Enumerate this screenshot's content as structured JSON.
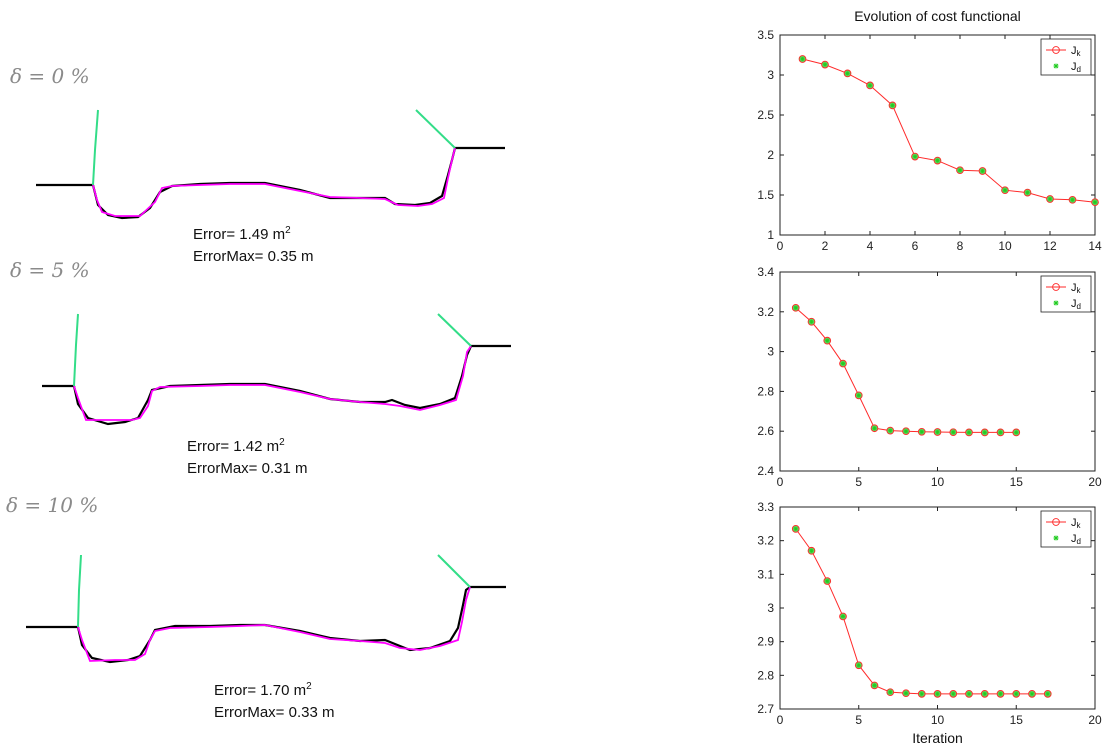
{
  "profiles": [
    {
      "delta_label": "δ = 0 %",
      "error_label": "Error=",
      "error_value": "1.49 m",
      "error_exp": "2",
      "errormax_label": "ErrorMax=",
      "errormax_value": "0.35 m"
    },
    {
      "delta_label": "δ = 5 %",
      "error_label": "Error=",
      "error_value": "1.42 m",
      "error_exp": "2",
      "errormax_label": "ErrorMax=",
      "errormax_value": "0.31 m"
    },
    {
      "delta_label": "δ = 10 %",
      "error_label": "Error=",
      "error_value": "1.70 m",
      "error_exp": "2",
      "errormax_label": "ErrorMax=",
      "errormax_value": "0.33 m"
    }
  ],
  "colors": {
    "true_profile": "#000000",
    "reconstructed_profile": "#ff00ff",
    "bank_lines": "#33dd88",
    "Jk": "#ff2a2a",
    "Jd_fill": "#5cd65c",
    "Jd_star": "#22cc22"
  },
  "chart_data": [
    {
      "type": "line",
      "title": "Evolution of cost functional",
      "xlabel": "",
      "ylabel": "",
      "xlim": [
        0,
        14
      ],
      "ylim": [
        1,
        3.5
      ],
      "xticks": [
        0,
        2,
        4,
        6,
        8,
        10,
        12,
        14
      ],
      "yticks": [
        1,
        1.5,
        2,
        2.5,
        3,
        3.5
      ],
      "legend_position": "top-right",
      "x": [
        1,
        2,
        3,
        4,
        5,
        6,
        7,
        8,
        9,
        10,
        11,
        12,
        13,
        14
      ],
      "series": [
        {
          "name": "J",
          "subscript": "k",
          "values": [
            3.2,
            3.13,
            3.02,
            2.87,
            2.62,
            1.98,
            1.93,
            1.81,
            1.8,
            1.56,
            1.53,
            1.45,
            1.44,
            1.41
          ]
        },
        {
          "name": "J",
          "subscript": "d",
          "values": [
            3.2,
            3.13,
            3.02,
            2.87,
            2.62,
            1.98,
            1.93,
            1.81,
            1.8,
            1.56,
            1.53,
            1.45,
            1.44,
            1.41
          ]
        }
      ]
    },
    {
      "type": "line",
      "title": "",
      "xlabel": "",
      "ylabel": "",
      "xlim": [
        0,
        20
      ],
      "ylim": [
        2.4,
        3.4
      ],
      "xticks": [
        0,
        5,
        10,
        15,
        20
      ],
      "yticks": [
        2.4,
        2.6,
        2.8,
        3,
        3.2,
        3.4
      ],
      "legend_position": "top-right",
      "x": [
        1,
        2,
        3,
        4,
        5,
        6,
        7,
        8,
        9,
        10,
        11,
        12,
        13,
        14,
        15
      ],
      "series": [
        {
          "name": "J",
          "subscript": "k",
          "values": [
            3.22,
            3.15,
            3.055,
            2.94,
            2.78,
            2.615,
            2.603,
            2.6,
            2.597,
            2.596,
            2.595,
            2.594,
            2.594,
            2.594,
            2.594
          ]
        },
        {
          "name": "J",
          "subscript": "d",
          "values": [
            3.22,
            3.15,
            3.055,
            2.94,
            2.78,
            2.615,
            2.603,
            2.6,
            2.597,
            2.596,
            2.595,
            2.594,
            2.594,
            2.594,
            2.594
          ]
        }
      ]
    },
    {
      "type": "line",
      "title": "",
      "xlabel": "Iteration",
      "ylabel": "",
      "xlim": [
        0,
        20
      ],
      "ylim": [
        2.7,
        3.3
      ],
      "xticks": [
        0,
        5,
        10,
        15,
        20
      ],
      "yticks": [
        2.7,
        2.8,
        2.9,
        3,
        3.1,
        3.2,
        3.3
      ],
      "legend_position": "top-right",
      "x": [
        1,
        2,
        3,
        4,
        5,
        6,
        7,
        8,
        9,
        10,
        11,
        12,
        13,
        14,
        15,
        16,
        17
      ],
      "series": [
        {
          "name": "J",
          "subscript": "k",
          "values": [
            3.235,
            3.17,
            3.08,
            2.975,
            2.83,
            2.77,
            2.75,
            2.747,
            2.745,
            2.745,
            2.745,
            2.745,
            2.745,
            2.745,
            2.745,
            2.745,
            2.745
          ]
        },
        {
          "name": "J",
          "subscript": "d",
          "values": [
            3.235,
            3.17,
            3.08,
            2.975,
            2.83,
            2.77,
            2.75,
            2.747,
            2.745,
            2.745,
            2.745,
            2.745,
            2.745,
            2.745,
            2.745,
            2.745,
            2.745
          ]
        }
      ]
    }
  ]
}
